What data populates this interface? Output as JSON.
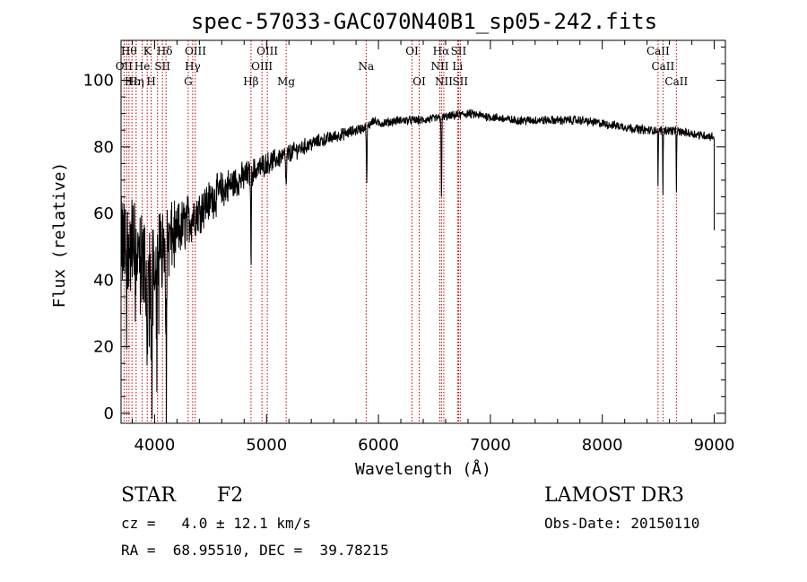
{
  "chart_data": {
    "type": "line",
    "title": "spec-57033-GAC070N40B1_sp05-242.fits",
    "xlabel": "Wavelength (Å)",
    "ylabel": "Flux (relative)",
    "xlim": [
      3700,
      9100
    ],
    "ylim": [
      -3,
      112
    ],
    "x_ticks": [
      4000,
      5000,
      6000,
      7000,
      8000,
      9000
    ],
    "y_ticks": [
      0,
      20,
      40,
      60,
      80,
      100
    ],
    "series": [
      {
        "name": "spectrum",
        "continuum": [
          [
            3700,
            50
          ],
          [
            3800,
            50
          ],
          [
            3900,
            45
          ],
          [
            4000,
            48
          ],
          [
            4100,
            51
          ],
          [
            4200,
            54
          ],
          [
            4300,
            58
          ],
          [
            4400,
            61
          ],
          [
            4500,
            64
          ],
          [
            4600,
            67
          ],
          [
            4700,
            69
          ],
          [
            4800,
            71
          ],
          [
            4900,
            73
          ],
          [
            5000,
            75
          ],
          [
            5200,
            78
          ],
          [
            5400,
            81
          ],
          [
            5600,
            83
          ],
          [
            5800,
            85
          ],
          [
            5900,
            86
          ],
          [
            5950,
            88
          ],
          [
            6000,
            87
          ],
          [
            6200,
            88
          ],
          [
            6400,
            88
          ],
          [
            6600,
            89
          ],
          [
            6800,
            90
          ],
          [
            7000,
            89
          ],
          [
            7200,
            88
          ],
          [
            7400,
            88
          ],
          [
            7600,
            88
          ],
          [
            7800,
            88
          ],
          [
            8000,
            87
          ],
          [
            8200,
            86
          ],
          [
            8400,
            85
          ],
          [
            8600,
            85
          ],
          [
            8800,
            84
          ],
          [
            9000,
            83
          ]
        ],
        "noise": [
          [
            3700,
            14
          ],
          [
            3900,
            13
          ],
          [
            4100,
            11
          ],
          [
            4200,
            8
          ],
          [
            4400,
            6
          ],
          [
            4600,
            5
          ],
          [
            4800,
            4
          ],
          [
            5000,
            3
          ],
          [
            5400,
            2
          ],
          [
            6000,
            1.2
          ],
          [
            9000,
            1.2
          ]
        ],
        "absorption_lines": [
          [
            3934,
            25,
            8
          ],
          [
            3969,
            25,
            8
          ],
          [
            4102,
            20,
            6
          ],
          [
            4861,
            28,
            4
          ],
          [
            5175,
            10,
            6
          ],
          [
            5895,
            18,
            4
          ],
          [
            6563,
            25,
            4
          ],
          [
            8498,
            18,
            3
          ],
          [
            8542,
            20,
            3
          ],
          [
            8662,
            18,
            3
          ]
        ],
        "end_point": [
          9000,
          55
        ]
      }
    ],
    "marker_lines": {
      "wavelengths": [
        3727,
        3750,
        3771,
        3798,
        3835,
        3889,
        3934,
        3969,
        4026,
        4070,
        4102,
        4300,
        4340,
        4363,
        4861,
        4959,
        5007,
        5175,
        5890,
        6300,
        6364,
        6548,
        6563,
        6584,
        6707,
        6716,
        6731,
        8498,
        8542,
        8662
      ],
      "color": "#c00000"
    },
    "line_labels": [
      {
        "text": "Hθ",
        "x": 3770,
        "row": 1
      },
      {
        "text": "K",
        "x": 3934,
        "row": 1
      },
      {
        "text": "Hδ",
        "x": 4090,
        "row": 1
      },
      {
        "text": "OIII",
        "x": 4365,
        "row": 1
      },
      {
        "text": "OIII",
        "x": 5007,
        "row": 1
      },
      {
        "text": "OI",
        "x": 6300,
        "row": 1
      },
      {
        "text": "Hα",
        "x": 6560,
        "row": 1
      },
      {
        "text": "SII",
        "x": 6716,
        "row": 1
      },
      {
        "text": "CaII",
        "x": 8498,
        "row": 1
      },
      {
        "text": "OII",
        "x": 3727,
        "row": 2
      },
      {
        "text": "He",
        "x": 3889,
        "row": 2
      },
      {
        "text": "SII",
        "x": 4070,
        "row": 2
      },
      {
        "text": "Hγ",
        "x": 4340,
        "row": 2
      },
      {
        "text": "OIII",
        "x": 4959,
        "row": 2
      },
      {
        "text": "Na",
        "x": 5890,
        "row": 2
      },
      {
        "text": "NII",
        "x": 6548,
        "row": 2
      },
      {
        "text": "Li",
        "x": 6707,
        "row": 2
      },
      {
        "text": "CaII",
        "x": 8542,
        "row": 2
      },
      {
        "text": "Hε",
        "x": 3798,
        "row": 3
      },
      {
        "text": "Hη",
        "x": 3835,
        "row": 3
      },
      {
        "text": "H",
        "x": 3969,
        "row": 3
      },
      {
        "text": "G",
        "x": 4300,
        "row": 3
      },
      {
        "text": "Hβ",
        "x": 4861,
        "row": 3
      },
      {
        "text": "Mg",
        "x": 5175,
        "row": 3
      },
      {
        "text": "OI",
        "x": 6364,
        "row": 3
      },
      {
        "text": "NII",
        "x": 6584,
        "row": 3
      },
      {
        "text": "SII",
        "x": 6731,
        "row": 3
      },
      {
        "text": "CaII",
        "x": 8662,
        "row": 3
      }
    ]
  },
  "info": {
    "object_class": "STAR",
    "subclass": "F2",
    "survey": "LAMOST DR3",
    "redshift": "cz =   4.0 ± 12.1 km/s",
    "obs_date": "Obs-Date: 20150110",
    "coords": "RA =  68.95510, DEC =  39.78215"
  }
}
